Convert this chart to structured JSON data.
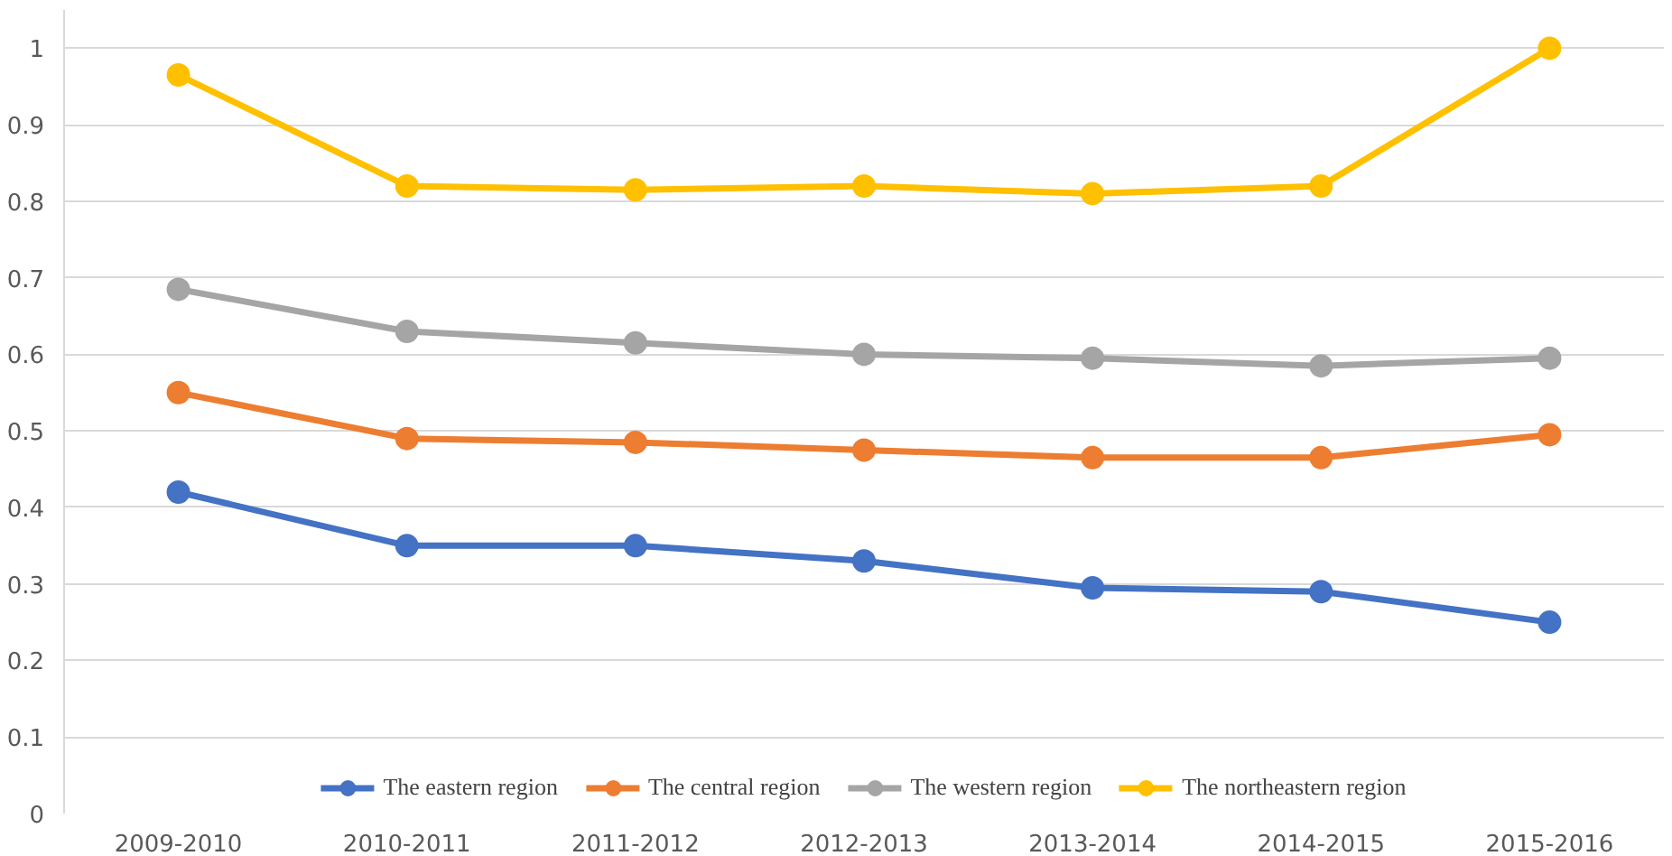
{
  "chart_data": {
    "type": "line",
    "categories": [
      "2009-2010",
      "2010-2011",
      "2011-2012",
      "2012-2013",
      "2013-2014",
      "2014-2015",
      "2015-2016"
    ],
    "series": [
      {
        "name": "The eastern region",
        "color": "#4472c4",
        "values": [
          0.42,
          0.35,
          0.35,
          0.33,
          0.295,
          0.29,
          0.25
        ]
      },
      {
        "name": "The central region",
        "color": "#ed7d31",
        "values": [
          0.55,
          0.49,
          0.485,
          0.475,
          0.465,
          0.465,
          0.495
        ]
      },
      {
        "name": "The western region",
        "color": "#a5a5a5",
        "values": [
          0.685,
          0.63,
          0.615,
          0.6,
          0.595,
          0.585,
          0.595
        ]
      },
      {
        "name": "The northeastern region",
        "color": "#ffc000",
        "values": [
          0.965,
          0.82,
          0.815,
          0.82,
          0.81,
          0.82,
          1.0
        ]
      }
    ],
    "ylim": [
      0,
      1.05
    ],
    "yticks": [
      0,
      0.1,
      0.2,
      0.3,
      0.4,
      0.5,
      0.6,
      0.7,
      0.8,
      0.9,
      1
    ],
    "grid": "y",
    "legend": "bottom",
    "marker": "circle",
    "line_style": "solid"
  }
}
